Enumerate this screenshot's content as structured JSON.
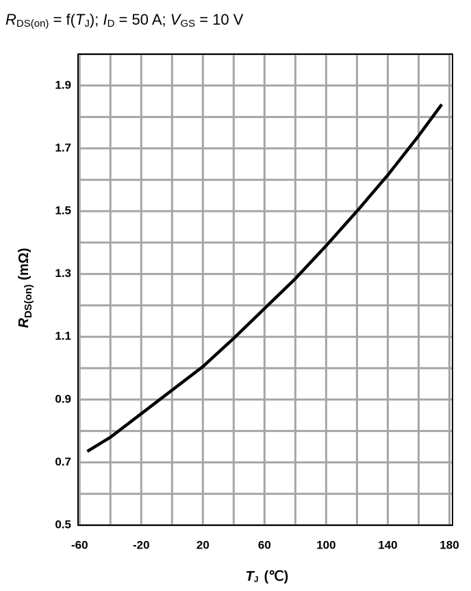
{
  "chart_data": {
    "type": "line",
    "title": {
      "r": "R",
      "r_sub": "DS(on)",
      "a": " = f(",
      "t": "T",
      "t_sub": "J",
      "b": "); ",
      "i": "I",
      "i_sub": "D",
      "c": " = 50 A; ",
      "v": "V",
      "v_sub": "GS",
      "d": " = 10 V"
    },
    "y_label": {
      "main": "R",
      "sub": "DS(on)",
      "unit": "(mΩ)"
    },
    "x_label": {
      "main": "T",
      "sub": "J",
      "unit": "(℃)"
    },
    "x": [
      -55,
      -40,
      -20,
      0,
      20,
      40,
      60,
      80,
      100,
      120,
      140,
      160,
      175
    ],
    "series": [
      {
        "color": "#000000",
        "values": [
          0.735,
          0.78,
          0.855,
          0.93,
          1.005,
          1.095,
          1.19,
          1.285,
          1.39,
          1.5,
          1.615,
          1.74,
          1.84
        ]
      }
    ],
    "xlim": [
      -61,
      182
    ],
    "ylim": [
      0.5,
      2.0
    ],
    "xticks": [
      -60,
      -20,
      20,
      60,
      100,
      140,
      180
    ],
    "yticks": [
      0.5,
      0.7,
      0.9,
      1.1,
      1.3,
      1.5,
      1.7,
      1.9
    ],
    "xminor": [
      -40,
      0,
      40,
      80,
      120,
      160
    ],
    "yminor": [
      0.6,
      0.8,
      1.0,
      1.2,
      1.4,
      1.6,
      1.8,
      2.0
    ],
    "grid": true
  }
}
